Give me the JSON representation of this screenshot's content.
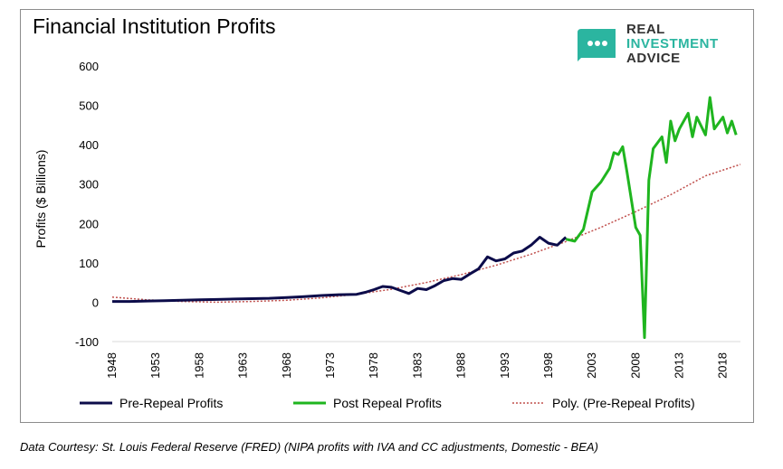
{
  "title": "Financial Institution Profits",
  "logo": {
    "line1": "REAL",
    "line2": "INVESTMENT",
    "line3": "ADVICE",
    "mark_color": "#2bb5a0"
  },
  "footnote": "Data Courtesy: St. Louis Federal Reserve (FRED) (NIPA profits with IVA and CC adjustments, Domestic - BEA)",
  "chart_data": {
    "type": "line",
    "ylabel": "Profits ($ Billions)",
    "ylim": [
      -100,
      600
    ],
    "yticks": [
      -100,
      0,
      100,
      200,
      300,
      400,
      500,
      600
    ],
    "xlim": [
      1948,
      2020
    ],
    "xticks": [
      "1948",
      "1953",
      "1958",
      "1963",
      "1968",
      "1973",
      "1978",
      "1983",
      "1988",
      "1993",
      "1998",
      "2003",
      "2008",
      "2013",
      "2018"
    ],
    "legend_position": "bottom",
    "grid": false,
    "series": [
      {
        "name": "Pre-Repeal Profits",
        "color": "#0c0c4a",
        "x": [
          1948,
          1950,
          1952,
          1954,
          1956,
          1958,
          1960,
          1962,
          1964,
          1966,
          1968,
          1970,
          1972,
          1974,
          1976,
          1977,
          1978,
          1979,
          1980,
          1981,
          1982,
          1983,
          1984,
          1985,
          1986,
          1987,
          1988,
          1989,
          1990,
          1991,
          1992,
          1993,
          1994,
          1995,
          1996,
          1997,
          1998,
          1999,
          2000
        ],
        "y": [
          2,
          2,
          3,
          4,
          5,
          6,
          7,
          8,
          9,
          10,
          12,
          14,
          17,
          19,
          20,
          25,
          32,
          40,
          38,
          30,
          22,
          35,
          32,
          42,
          55,
          60,
          58,
          72,
          85,
          115,
          105,
          110,
          125,
          130,
          145,
          165,
          150,
          145,
          165
        ]
      },
      {
        "name": "Post Repeal Profits",
        "color": "#1fb51f",
        "x": [
          2000,
          2001,
          2002,
          2003,
          2004,
          2005,
          2005.5,
          2006,
          2006.5,
          2007,
          2007.5,
          2008,
          2008.5,
          2009,
          2009.5,
          2010,
          2011,
          2011.5,
          2012,
          2012.5,
          2013,
          2014,
          2014.5,
          2015,
          2016,
          2016.5,
          2017,
          2018,
          2018.5,
          2019,
          2019.5
        ],
        "y": [
          160,
          155,
          185,
          280,
          305,
          340,
          380,
          375,
          395,
          330,
          260,
          190,
          170,
          -90,
          310,
          390,
          420,
          355,
          460,
          410,
          440,
          480,
          420,
          470,
          425,
          520,
          440,
          470,
          430,
          460,
          425
        ]
      },
      {
        "name": "Poly. (Pre-Repeal Profits)",
        "color": "#c0504d",
        "dashed": true,
        "x": [
          1948,
          1952,
          1956,
          1960,
          1964,
          1968,
          1972,
          1976,
          1980,
          1984,
          1988,
          1992,
          1996,
          2000,
          2004,
          2008,
          2012,
          2016,
          2020
        ],
        "y": [
          13,
          6,
          2,
          0,
          2,
          5,
          11,
          20,
          33,
          50,
          70,
          94,
          122,
          154,
          190,
          230,
          273,
          321,
          350
        ]
      }
    ]
  }
}
